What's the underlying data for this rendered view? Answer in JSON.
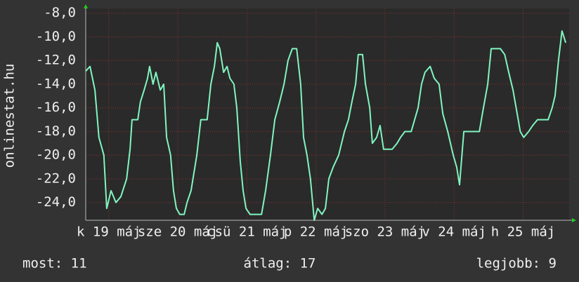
{
  "chart_data": {
    "type": "line",
    "y_label": "onlinestat.hu",
    "xlim": [
      0,
      168
    ],
    "ylim": [
      -25.5,
      -7.6
    ],
    "yticks": [
      {
        "value": -8,
        "label": "-8,0"
      },
      {
        "value": -10,
        "label": "-10,0"
      },
      {
        "value": -12,
        "label": "-12,0"
      },
      {
        "value": -14,
        "label": "-14,0"
      },
      {
        "value": -16,
        "label": "-16,0"
      },
      {
        "value": -18,
        "label": "-18,0"
      },
      {
        "value": -20,
        "label": "-20,0"
      },
      {
        "value": -22,
        "label": "-22,0"
      },
      {
        "value": -24,
        "label": "-24,0"
      }
    ],
    "xticks": [
      {
        "value": 8,
        "label": "k 19 máj"
      },
      {
        "value": 32,
        "label": "sze 20 máj"
      },
      {
        "value": 56,
        "label": "csü 21 máj"
      },
      {
        "value": 80,
        "label": "p 22 máj"
      },
      {
        "value": 104,
        "label": "szo 23 máj"
      },
      {
        "value": 128,
        "label": "v 24 máj"
      },
      {
        "value": 152,
        "label": "h 25 máj"
      }
    ],
    "grid": true,
    "series": [
      {
        "color": "#80f5c0",
        "x": [
          0,
          1.5,
          3.2,
          4.6,
          6.3,
          7.3,
          8.8,
          10.5,
          12.2,
          14.2,
          15.4,
          16.1,
          18.1,
          19.0,
          20.3,
          21.5,
          22.2,
          23.4,
          24.4,
          25.9,
          27.1,
          28.1,
          29.5,
          30.5,
          31.5,
          32.7,
          34.2,
          35.2,
          36.6,
          38.6,
          40.0,
          42.2,
          43.5,
          44.7,
          45.7,
          46.6,
          47.9,
          49.1,
          50.1,
          51.5,
          52.5,
          53.7,
          54.7,
          55.7,
          57.1,
          59.1,
          61.1,
          62.5,
          64.2,
          65.7,
          67.4,
          68.9,
          70.3,
          71.8,
          73.3,
          74.7,
          75.7,
          76.9,
          78.1,
          79.4,
          80.6,
          82.1,
          83.3,
          84.5,
          86.0,
          87.9,
          89.9,
          91.3,
          92.5,
          93.8,
          94.7,
          96.2,
          97.2,
          98.7,
          99.6,
          101.1,
          102.3,
          103.5,
          105.0,
          106.5,
          108.2,
          109.4,
          110.9,
          113.1,
          114.3,
          115.5,
          116.7,
          117.9,
          119.7,
          121.1,
          122.8,
          124.1,
          125.8,
          127.7,
          128.9,
          129.9,
          131.4,
          133.3,
          135.0,
          136.8,
          138.2,
          139.7,
          140.9,
          142.4,
          144.1,
          145.6,
          147.0,
          148.5,
          150.3,
          151.0,
          152.2,
          153.9,
          155.3,
          157.0,
          158.8,
          160.7,
          162.1,
          163.1,
          164.3,
          165.5,
          166.8
        ],
        "values": [
          -12.9,
          -12.5,
          -14.5,
          -18.5,
          -20,
          -24.5,
          -23,
          -24,
          -23.5,
          -22,
          -19.5,
          -17,
          -17,
          -15.5,
          -14.5,
          -13.5,
          -12.5,
          -14,
          -13,
          -14.5,
          -14,
          -18.5,
          -20,
          -23,
          -24.5,
          -25,
          -25,
          -24,
          -23,
          -20,
          -17,
          -17,
          -14,
          -12.5,
          -10.5,
          -11,
          -13,
          -12.5,
          -13.5,
          -14,
          -16,
          -20.5,
          -23,
          -24.5,
          -25,
          -25,
          -25,
          -23,
          -20,
          -17,
          -15.5,
          -14,
          -12,
          -11,
          -11,
          -14,
          -18.5,
          -20,
          -22,
          -25.5,
          -24.5,
          -25,
          -24.5,
          -22,
          -21,
          -20,
          -18,
          -17,
          -15.5,
          -14,
          -11.5,
          -11.5,
          -14,
          -16,
          -19,
          -18.5,
          -17.5,
          -19.5,
          -19.5,
          -19.5,
          -19,
          -18.5,
          -18,
          -18,
          -17,
          -16,
          -14,
          -13,
          -12.5,
          -13.5,
          -14,
          -16.5,
          -18,
          -20,
          -21,
          -22.5,
          -18,
          -18,
          -18,
          -18,
          -16,
          -14,
          -11,
          -11,
          -11,
          -11.5,
          -13,
          -14.5,
          -17,
          -18,
          -18.5,
          -18,
          -17.5,
          -17,
          -17,
          -17,
          -16,
          -15,
          -12,
          -9.5,
          -10.5
        ]
      }
    ],
    "stats": {
      "current": "most: 11",
      "average": "átlag: 17",
      "best": "legjobb: 9"
    }
  }
}
